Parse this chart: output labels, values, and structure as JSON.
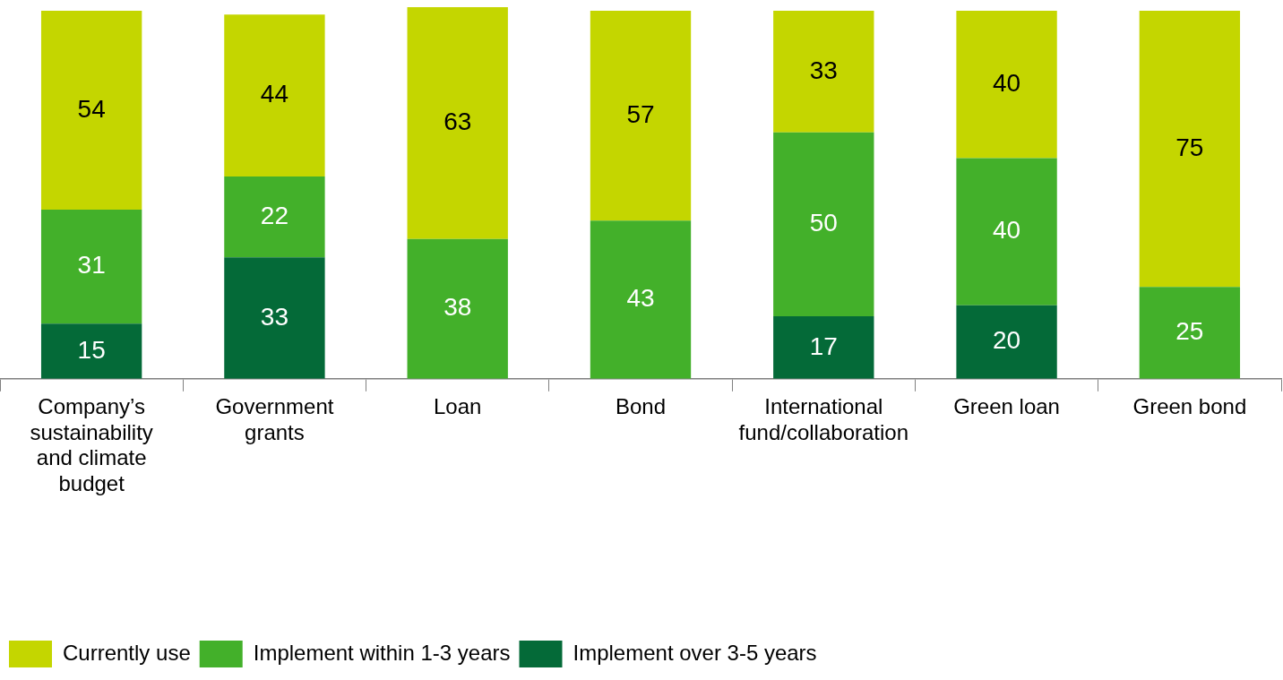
{
  "chart_data": {
    "type": "bar",
    "stacked": true,
    "categories": [
      "Company’s sustainability and climate budget",
      "Government grants",
      "Loan",
      "Bond",
      "International fund/collaboration",
      "Green loan",
      "Green bond"
    ],
    "series": [
      {
        "name": "Implement over 3-5 years",
        "color": "#046a38",
        "values": [
          15,
          33,
          null,
          null,
          17,
          20,
          null
        ]
      },
      {
        "name": "Implement within 1-3 years",
        "color": "#43b02a",
        "values": [
          31,
          22,
          38,
          43,
          50,
          40,
          25
        ]
      },
      {
        "name": "Currently use",
        "color": "#c4d600",
        "values": [
          54,
          44,
          63,
          57,
          33,
          40,
          75
        ]
      }
    ],
    "ylim": [
      0,
      101
    ],
    "data_labels": true,
    "legend": "bottom left",
    "grid": false,
    "tick_labels": "x"
  }
}
